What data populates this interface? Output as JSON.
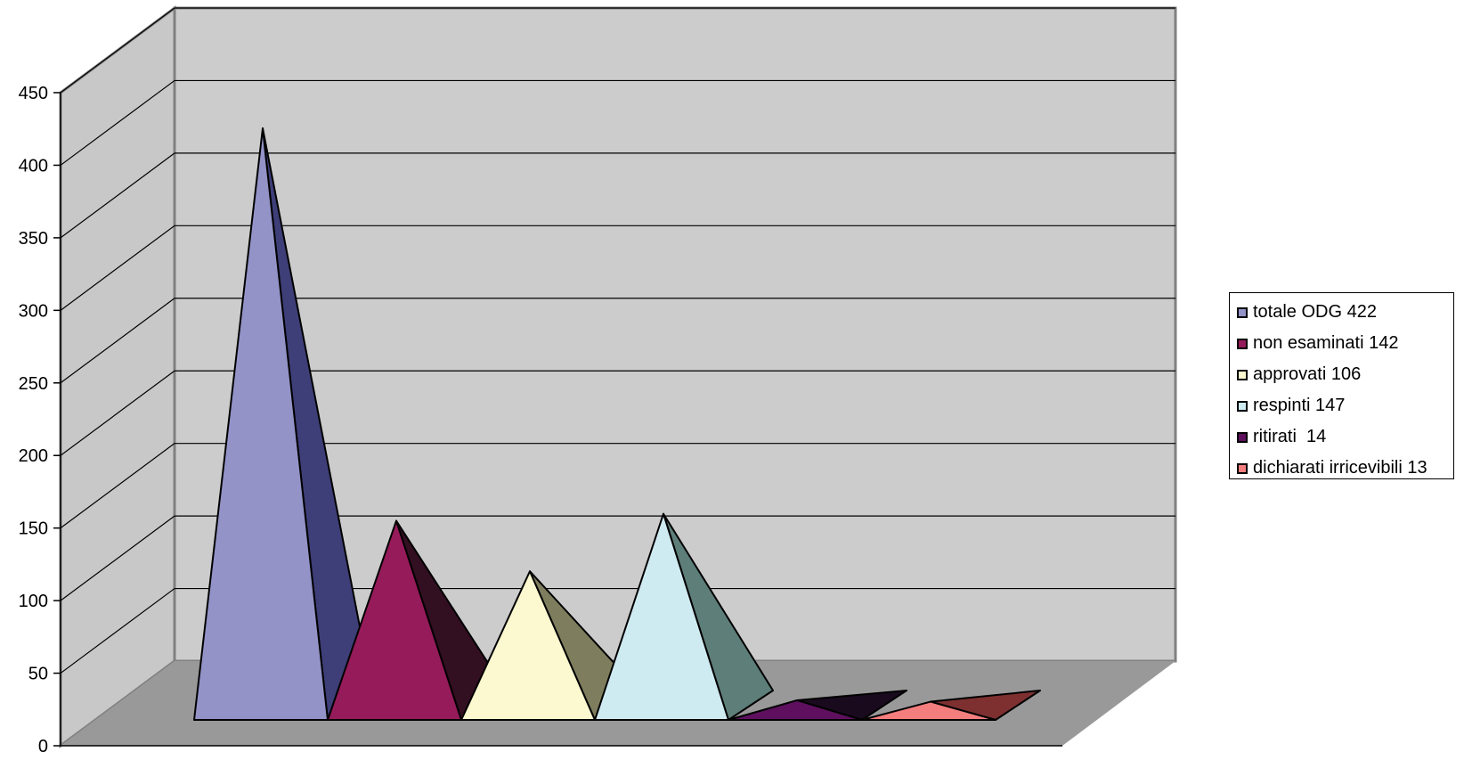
{
  "chart_data": {
    "type": "bar",
    "style": "3d-pyramid",
    "title": "",
    "xlabel": "",
    "ylabel": "",
    "ylim": [
      0,
      450
    ],
    "yticks": [
      "0",
      "50",
      "100",
      "150",
      "200",
      "250",
      "300",
      "350",
      "400",
      "450"
    ],
    "grid": true,
    "legend_position": "right",
    "categories": [
      "totale ODG 422",
      "non esaminati 142",
      "approvati 106",
      "respinti 147",
      "ritirati  14",
      "dichiarati irricevibili 13"
    ],
    "series": [
      {
        "name": "totale ODG 422",
        "value": 422,
        "color": "#9393c8",
        "shade": "#3e3e78"
      },
      {
        "name": "non esaminati 142",
        "value": 142,
        "color": "#961b5a",
        "shade": "#330f22"
      },
      {
        "name": "approvati 106",
        "value": 106,
        "color": "#fcf8cf",
        "shade": "#7e7e5e"
      },
      {
        "name": "respinti 147",
        "value": 147,
        "color": "#cfebf2",
        "shade": "#5e7e7a"
      },
      {
        "name": "ritirati  14",
        "value": 14,
        "color": "#5e105e",
        "shade": "#1a0a1e"
      },
      {
        "name": "dichiarati irricevibili 13",
        "value": 13,
        "color": "#f47e7e",
        "shade": "#7e3030"
      }
    ]
  }
}
